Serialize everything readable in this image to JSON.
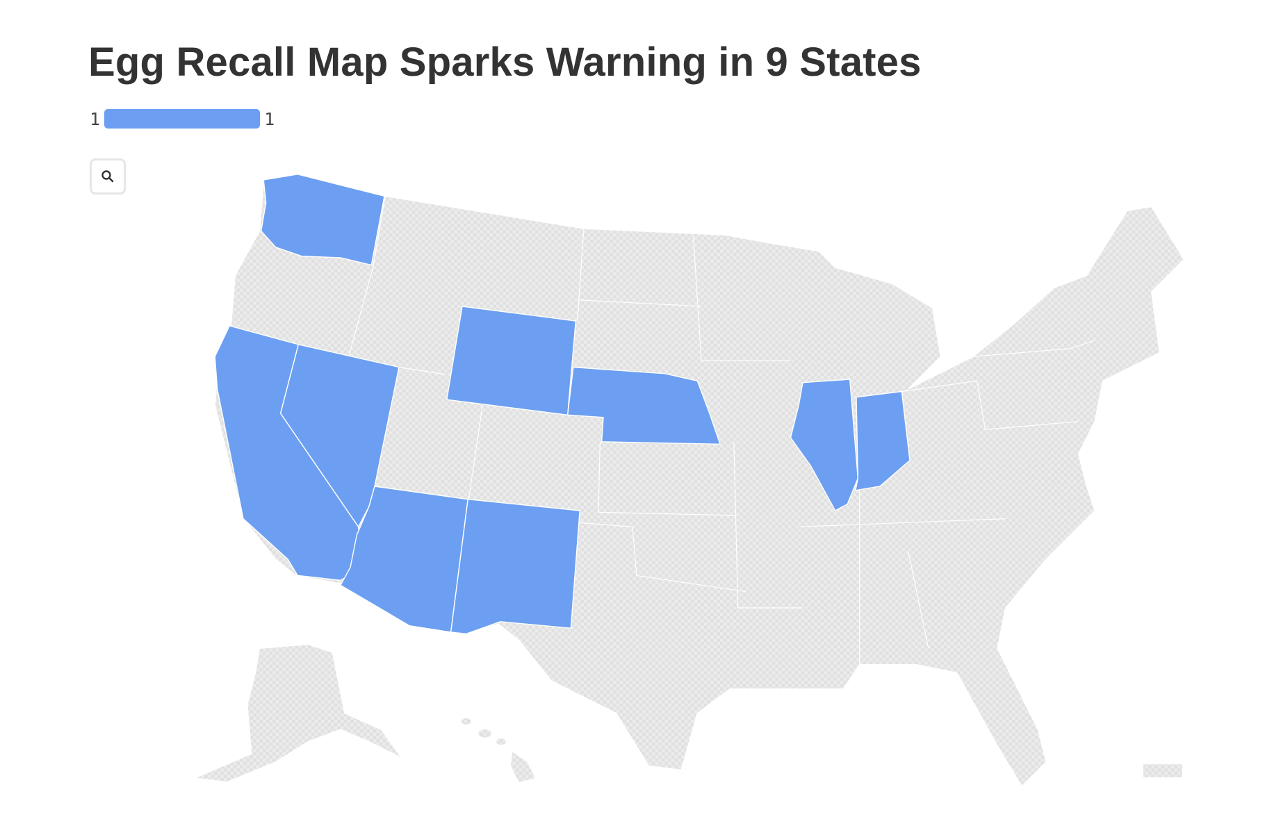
{
  "title": "Egg Recall Map Sparks Warning in 9 States",
  "legend": {
    "min_label": "1",
    "max_label": "1",
    "color": "#6c9ff1"
  },
  "search_button": {
    "icon": "search-icon"
  },
  "colors": {
    "highlight": "#6c9ff1",
    "no_data": "#e8e8e8",
    "border": "#ffffff"
  },
  "chart_data": {
    "type": "choropleth",
    "region": "United States",
    "highlighted_states": [
      {
        "state": "Washington",
        "value": 1
      },
      {
        "state": "California",
        "value": 1
      },
      {
        "state": "Nevada",
        "value": 1
      },
      {
        "state": "Wyoming",
        "value": 1
      },
      {
        "state": "Nebraska",
        "value": 1
      },
      {
        "state": "Arizona",
        "value": 1
      },
      {
        "state": "New Mexico",
        "value": 1
      },
      {
        "state": "Illinois",
        "value": 1
      },
      {
        "state": "Indiana",
        "value": 1
      }
    ],
    "scale": {
      "min": 1,
      "max": 1
    }
  }
}
